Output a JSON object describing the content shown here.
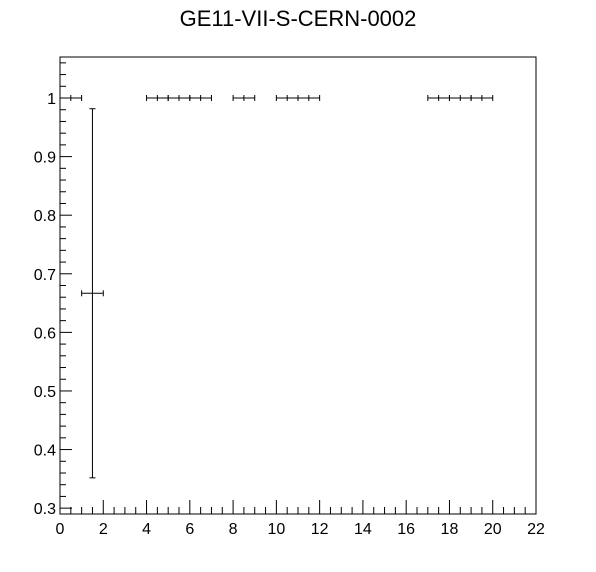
{
  "chart_data": {
    "type": "scatter",
    "title": "GE11-VII-S-CERN-0002",
    "xlabel": "",
    "ylabel": "",
    "xlim": [
      0,
      22
    ],
    "ylim": [
      0.29,
      1.07
    ],
    "x_ticks": [
      0,
      2,
      4,
      6,
      8,
      10,
      12,
      14,
      16,
      18,
      20,
      22
    ],
    "y_ticks": [
      0.3,
      0.4,
      0.5,
      0.6,
      0.7,
      0.8,
      0.9,
      1
    ],
    "grid": false,
    "series": [
      {
        "points": [
          {
            "x": 0.5,
            "y": 1.0,
            "xerr": 0.5,
            "yerr_low": 0,
            "yerr_high": 0
          },
          {
            "x": 1.5,
            "y": 0.6667,
            "xerr": 0.5,
            "yerr_low": 0.315,
            "yerr_high": 0.315
          },
          {
            "x": 4.5,
            "y": 1.0,
            "xerr": 0.5,
            "yerr_low": 0,
            "yerr_high": 0
          },
          {
            "x": 5.5,
            "y": 1.0,
            "xerr": 0.5,
            "yerr_low": 0,
            "yerr_high": 0
          },
          {
            "x": 6.5,
            "y": 1.0,
            "xerr": 0.5,
            "yerr_low": 0,
            "yerr_high": 0
          },
          {
            "x": 8.5,
            "y": 1.0,
            "xerr": 0.5,
            "yerr_low": 0,
            "yerr_high": 0
          },
          {
            "x": 10.5,
            "y": 1.0,
            "xerr": 0.5,
            "yerr_low": 0,
            "yerr_high": 0
          },
          {
            "x": 11.5,
            "y": 1.0,
            "xerr": 0.5,
            "yerr_low": 0,
            "yerr_high": 0
          },
          {
            "x": 17.5,
            "y": 1.0,
            "xerr": 0.5,
            "yerr_low": 0,
            "yerr_high": 0
          },
          {
            "x": 18.5,
            "y": 1.0,
            "xerr": 0.5,
            "yerr_low": 0,
            "yerr_high": 0
          },
          {
            "x": 19.5,
            "y": 1.0,
            "xerr": 0.5,
            "yerr_low": 0,
            "yerr_high": 0
          }
        ]
      }
    ]
  }
}
